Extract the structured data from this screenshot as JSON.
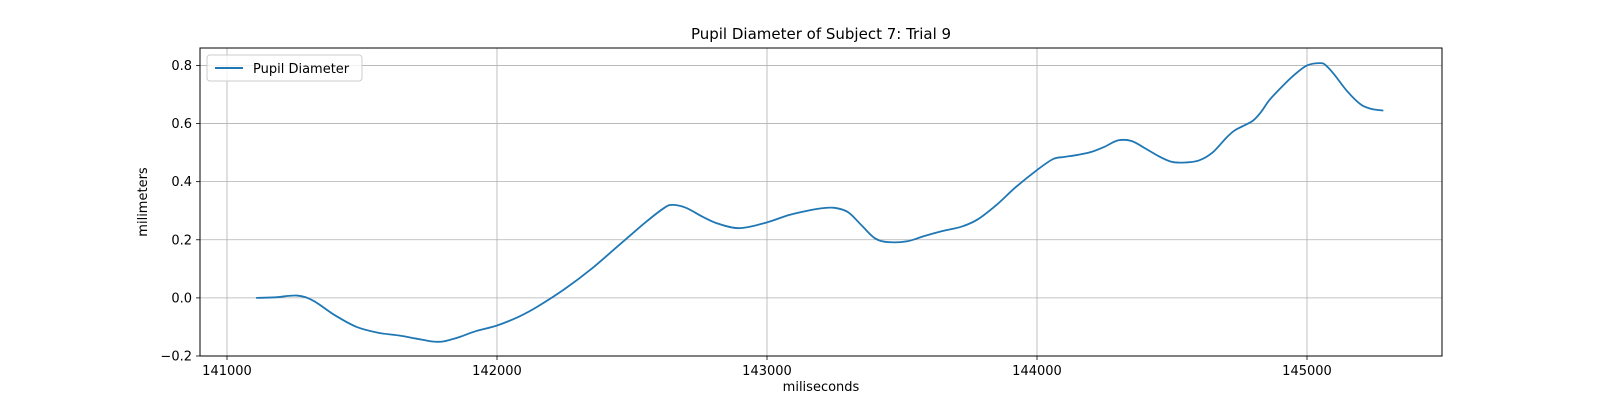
{
  "chart_data": {
    "type": "line",
    "title": "Pupil Diameter of Subject 7: Trial 9",
    "xlabel": "miliseconds",
    "ylabel": "milimeters",
    "xlim": [
      140900,
      145500
    ],
    "ylim": [
      -0.2,
      0.86
    ],
    "xticks": [
      141000,
      142000,
      143000,
      144000,
      145000
    ],
    "yticks": [
      -0.2,
      0.0,
      0.2,
      0.4,
      0.6,
      0.8
    ],
    "xtick_labels": [
      "141000",
      "142000",
      "143000",
      "144000",
      "145000"
    ],
    "ytick_labels": [
      "−0.2",
      "0.0",
      "0.2",
      "0.4",
      "0.6",
      "0.8"
    ],
    "grid": true,
    "legend": {
      "position": "top-left",
      "entries": [
        "Pupil Diameter"
      ]
    },
    "series": [
      {
        "name": "Pupil Diameter",
        "color": "#1f77b4",
        "x": [
          141110,
          141180,
          141260,
          141320,
          141400,
          141480,
          141560,
          141640,
          141700,
          141760,
          141800,
          141860,
          141920,
          142000,
          142080,
          142150,
          142250,
          142350,
          142450,
          142550,
          142620,
          142650,
          142700,
          142760,
          142820,
          142900,
          143000,
          143080,
          143150,
          143200,
          143250,
          143300,
          143350,
          143400,
          143450,
          143520,
          143580,
          143650,
          143720,
          143780,
          143850,
          143920,
          144000,
          144060,
          144100,
          144150,
          144200,
          144250,
          144300,
          144350,
          144400,
          144450,
          144500,
          144550,
          144600,
          144650,
          144700,
          144730,
          144760,
          144800,
          144830,
          144860,
          144900,
          144950,
          145000,
          145050,
          145070,
          145100,
          145150,
          145200,
          145240,
          145280
        ],
        "y": [
          0.0,
          0.002,
          0.008,
          -0.01,
          -0.06,
          -0.1,
          -0.12,
          -0.13,
          -0.14,
          -0.15,
          -0.15,
          -0.135,
          -0.115,
          -0.095,
          -0.065,
          -0.03,
          0.03,
          0.1,
          0.18,
          0.26,
          0.31,
          0.32,
          0.31,
          0.28,
          0.255,
          0.24,
          0.26,
          0.285,
          0.3,
          0.308,
          0.31,
          0.295,
          0.25,
          0.205,
          0.192,
          0.195,
          0.212,
          0.23,
          0.245,
          0.27,
          0.32,
          0.38,
          0.44,
          0.478,
          0.485,
          0.492,
          0.502,
          0.52,
          0.542,
          0.54,
          0.515,
          0.488,
          0.468,
          0.466,
          0.473,
          0.5,
          0.55,
          0.575,
          0.59,
          0.61,
          0.64,
          0.68,
          0.72,
          0.765,
          0.8,
          0.808,
          0.8,
          0.77,
          0.71,
          0.665,
          0.65,
          0.645
        ]
      }
    ]
  }
}
